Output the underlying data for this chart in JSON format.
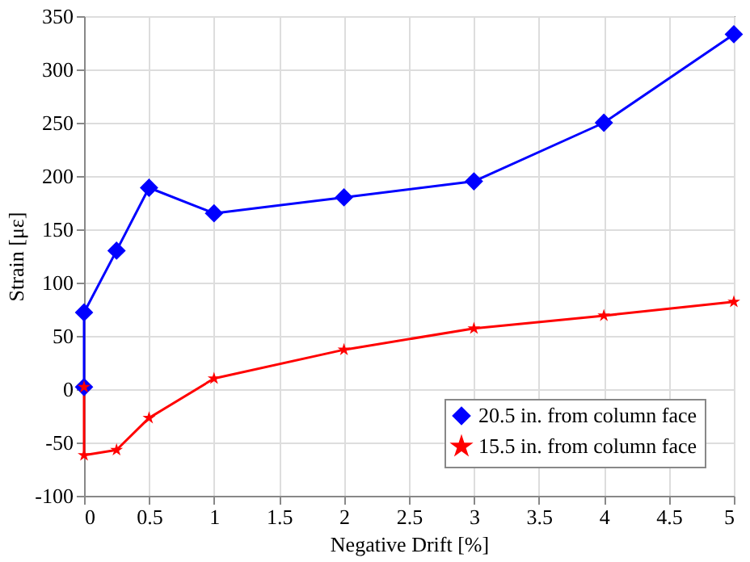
{
  "chart_data": {
    "type": "line",
    "xlabel": "Negative Drift [%]",
    "ylabel": "Strain [με]",
    "xlim": [
      0,
      5
    ],
    "xticks": [
      0,
      0.5,
      1,
      1.5,
      2,
      2.5,
      3,
      3.5,
      4,
      4.5,
      5
    ],
    "ylim": [
      -100,
      350
    ],
    "yticks": [
      -100,
      -50,
      0,
      50,
      100,
      150,
      200,
      250,
      300,
      350
    ],
    "grid": true,
    "legend": "bottom right",
    "series": [
      {
        "name": "20.5 in. from column face",
        "color": "#0000ff",
        "marker": "diamond",
        "x": [
          0,
          0,
          0.25,
          0.5,
          1,
          2,
          3,
          4,
          5
        ],
        "values": [
          2,
          72,
          130,
          189,
          165,
          180,
          195,
          250,
          333
        ]
      },
      {
        "name": "15.5 in. from column face",
        "color": "#ff0000",
        "marker": "star",
        "x": [
          0,
          0,
          0.25,
          0.5,
          1,
          2,
          3,
          4,
          5
        ],
        "values": [
          2,
          -62,
          -57,
          -27,
          10,
          37,
          57,
          69,
          82
        ]
      }
    ]
  }
}
